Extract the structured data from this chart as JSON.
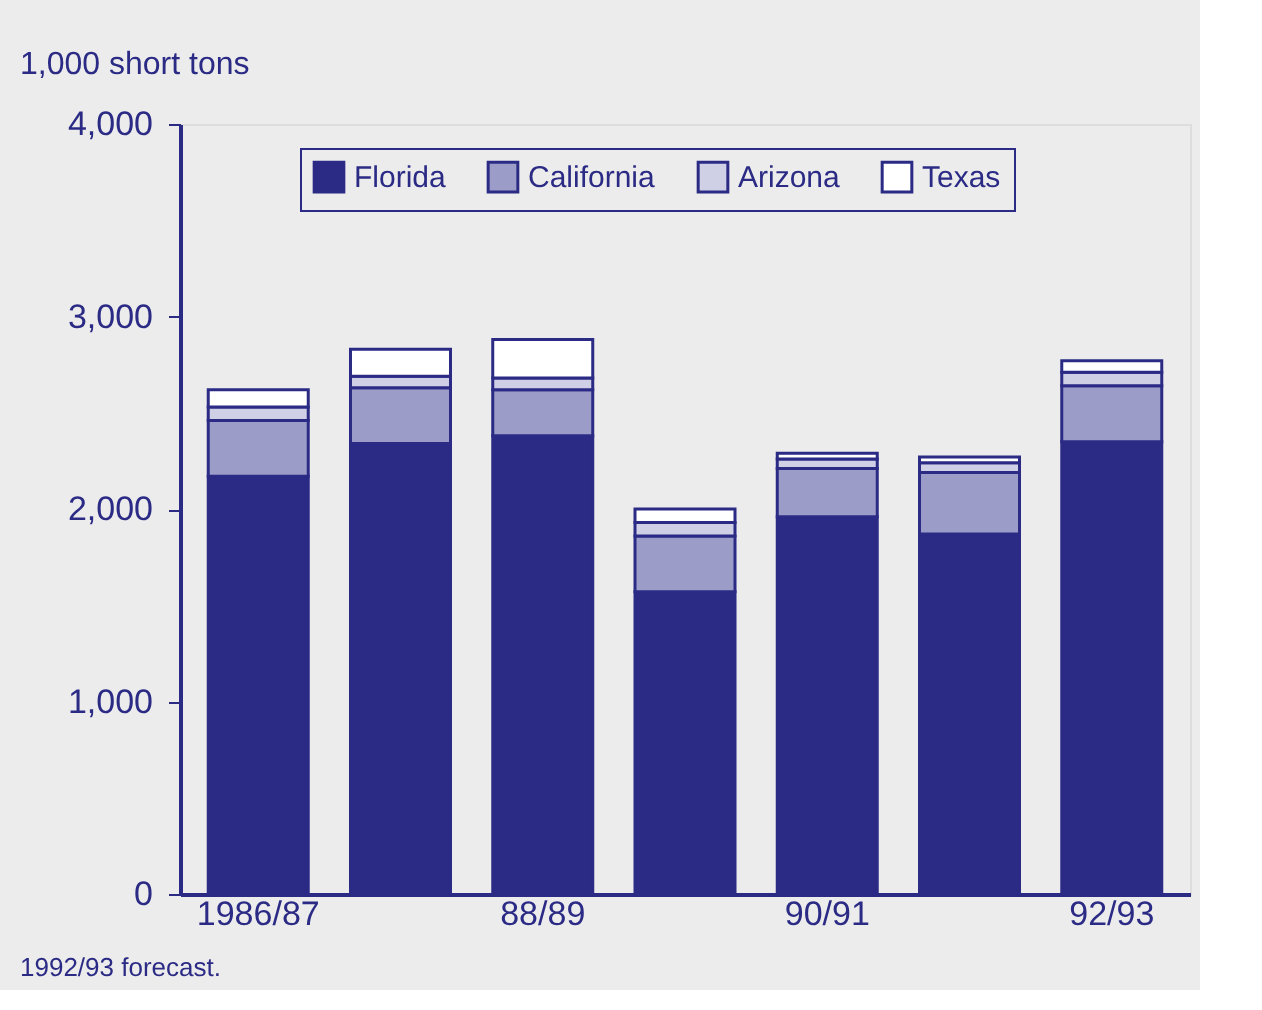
{
  "chart_data": {
    "type": "bar",
    "stacked": true,
    "ylabel": "1,000 short tons",
    "categories": [
      "1986/87",
      null,
      "88/89",
      null,
      "90/91",
      null,
      "92/93"
    ],
    "series": [
      {
        "name": "Florida",
        "color": "#2b2b86",
        "values": [
          2170,
          2340,
          2380,
          1570,
          1960,
          1870,
          2350
        ]
      },
      {
        "name": "California",
        "color": "#9c9cc9",
        "values": [
          290,
          290,
          240,
          290,
          250,
          320,
          290
        ]
      },
      {
        "name": "Arizona",
        "color": "#cfcfe6",
        "values": [
          70,
          60,
          60,
          70,
          50,
          50,
          70
        ]
      },
      {
        "name": "Texas",
        "color": "#ffffff",
        "values": [
          90,
          140,
          200,
          70,
          30,
          30,
          60
        ]
      }
    ],
    "ylim": [
      0,
      4000
    ],
    "yticks": [
      {
        "value": 0,
        "label": "0"
      },
      {
        "value": 1000,
        "label": "1,000"
      },
      {
        "value": 2000,
        "label": "2,000"
      },
      {
        "value": 3000,
        "label": "3,000"
      },
      {
        "value": 4000,
        "label": "4,000"
      }
    ],
    "legend": "top",
    "grid": false,
    "annotations": [
      "1992/93 forecast."
    ]
  }
}
